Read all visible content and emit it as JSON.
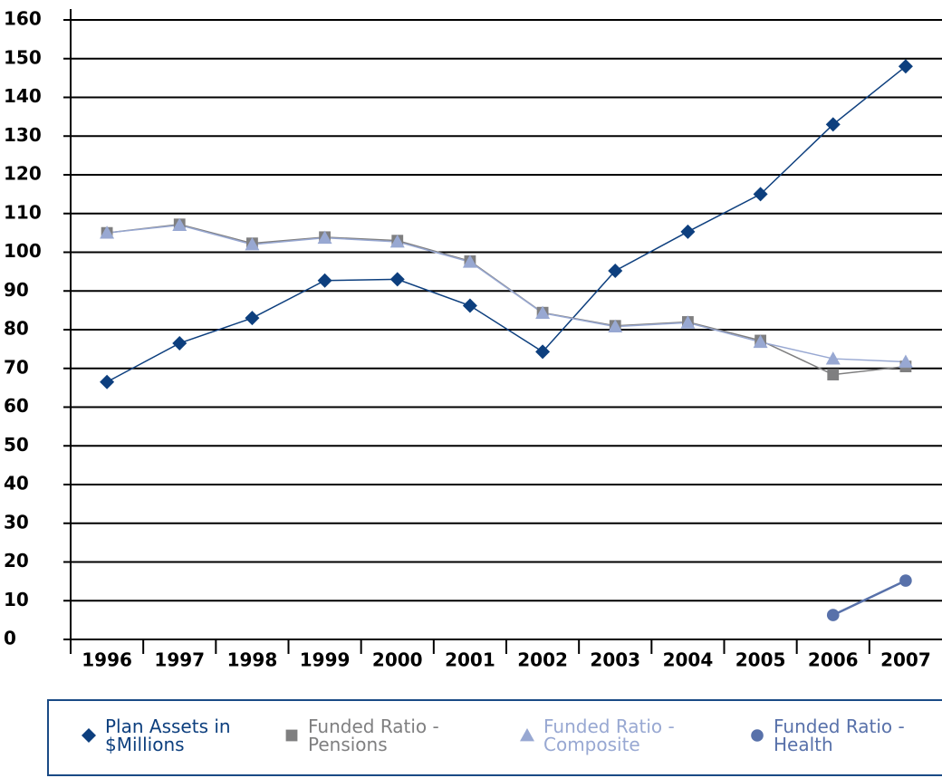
{
  "chart_data": {
    "type": "line",
    "categories": [
      "1996",
      "1997",
      "1998",
      "1999",
      "2000",
      "2001",
      "2002",
      "2003",
      "2004",
      "2005",
      "2006",
      "2007"
    ],
    "series": [
      {
        "name": "Plan Assets in $Millions",
        "color": "#0d3f7e",
        "marker": "diamond",
        "values": [
          66.5,
          76.5,
          83,
          92.7,
          93,
          86.2,
          74.3,
          95.2,
          105.3,
          115,
          133,
          148
        ]
      },
      {
        "name": "Funded Ratio - Pensions",
        "color": "#7f7f80",
        "marker": "square",
        "values": [
          105,
          107.2,
          102.3,
          103.9,
          103,
          97.7,
          84.4,
          81,
          82,
          77.2,
          68.4,
          70.5
        ]
      },
      {
        "name": "Funded Ratio - Composite",
        "color": "#98a8d2",
        "marker": "triangle",
        "values": [
          105,
          107,
          102,
          103.7,
          102.7,
          97.5,
          84.3,
          80.8,
          81.8,
          76.8,
          72.5,
          71.7
        ]
      },
      {
        "name": "Funded Ratio - Health",
        "color": "#5871aa",
        "marker": "circle",
        "values": [
          null,
          null,
          null,
          null,
          null,
          null,
          null,
          null,
          null,
          null,
          6.3,
          15.2
        ]
      }
    ],
    "ylim": [
      0,
      160
    ],
    "yticks": [
      0,
      10,
      20,
      30,
      40,
      50,
      60,
      70,
      80,
      90,
      100,
      110,
      120,
      130,
      140,
      150,
      160
    ],
    "grid": true,
    "legend": "bottom"
  }
}
